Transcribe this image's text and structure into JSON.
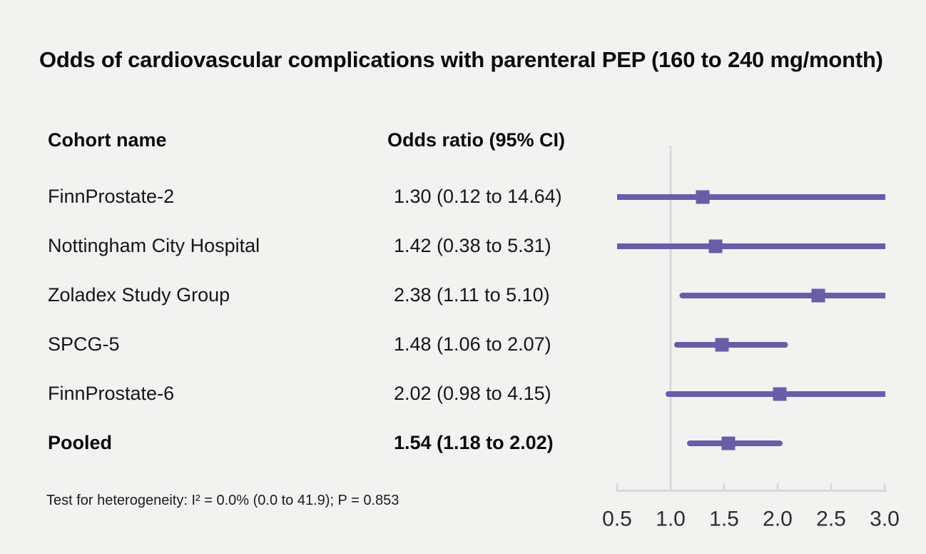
{
  "title": "Odds of cardiovascular complications with parenteral PEP (160 to 240 mg/month)",
  "columns": {
    "cohort": "Cohort name",
    "odds": "Odds ratio (95% CI)"
  },
  "footnote": "Test for heterogeneity: I² = 0.0% (0.0 to 41.9); P = 0.853",
  "chart_data": {
    "type": "forest",
    "title": "Odds of cardiovascular complications with parenteral PEP (160 to 240 mg/month)",
    "scale": "linear",
    "xlim": [
      0.5,
      3.0
    ],
    "x_ticks": [
      0.5,
      1.0,
      1.5,
      2.0,
      2.5,
      3.0
    ],
    "x_tick_labels": [
      "0.5",
      "1.0",
      "1.5",
      "2.0",
      "2.5",
      "3.0"
    ],
    "reference_line": 1.0,
    "grid": false,
    "rows": [
      {
        "cohort": "FinnProstate-2",
        "or_text": "1.30 (0.12 to 14.64)",
        "or": 1.3,
        "lo": 0.12,
        "hi": 14.64,
        "bold": false
      },
      {
        "cohort": "Nottingham City Hospital",
        "or_text": "1.42 (0.38 to 5.31)",
        "or": 1.42,
        "lo": 0.38,
        "hi": 5.31,
        "bold": false
      },
      {
        "cohort": "Zoladex Study Group",
        "or_text": "2.38 (1.11 to 5.10)",
        "or": 2.38,
        "lo": 1.11,
        "hi": 5.1,
        "bold": false
      },
      {
        "cohort": "SPCG-5",
        "or_text": "1.48 (1.06 to 2.07)",
        "or": 1.48,
        "lo": 1.06,
        "hi": 2.07,
        "bold": false
      },
      {
        "cohort": "FinnProstate-6",
        "or_text": "2.02 (0.98 to 4.15)",
        "or": 2.02,
        "lo": 0.98,
        "hi": 4.15,
        "bold": false
      },
      {
        "cohort": "Pooled",
        "or_text": "1.54 (1.18 to 2.02)",
        "or": 1.54,
        "lo": 1.18,
        "hi": 2.02,
        "bold": true
      }
    ],
    "colors": {
      "marker": "#6b5ca8",
      "axis": "#d5d9e1",
      "background": "#f2f2f1",
      "tick_label": "#2d2d2d"
    }
  }
}
